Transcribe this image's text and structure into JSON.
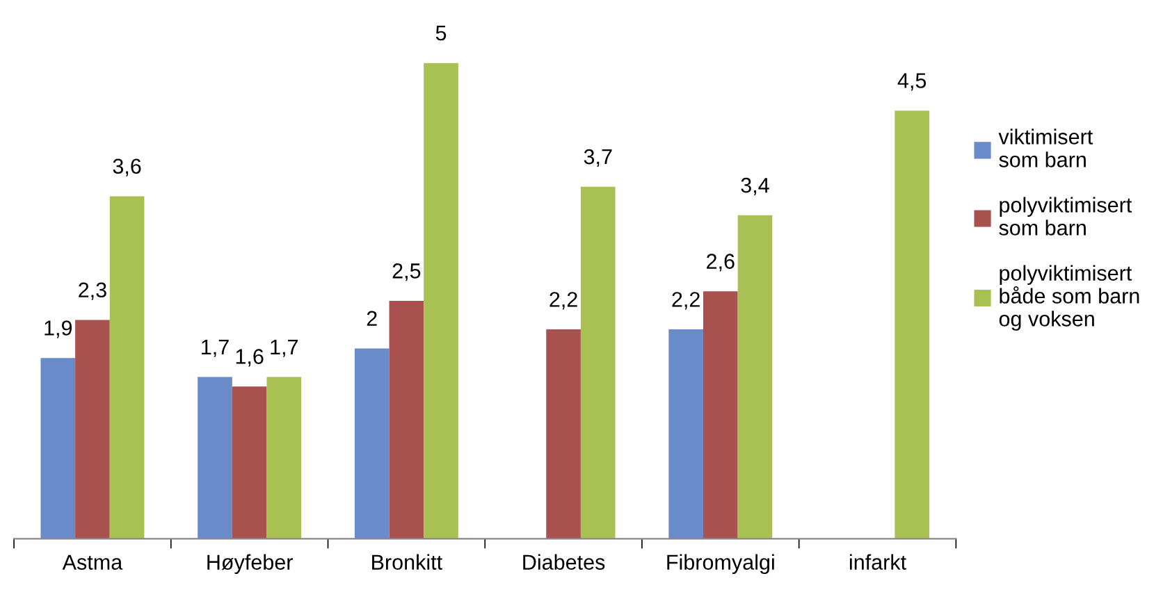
{
  "chart_data": {
    "type": "bar",
    "categories": [
      "Astma",
      "Høyfeber",
      "Bronkitt",
      "Diabetes",
      "Fibromyalgi",
      "infarkt"
    ],
    "series": [
      {
        "name": "viktimisert\nsom barn",
        "color": "#6a8bc9",
        "values": [
          1.9,
          1.7,
          2,
          null,
          2.2,
          null
        ],
        "value_labels": [
          "1,9",
          "1,7",
          "2",
          null,
          "2,2",
          null
        ]
      },
      {
        "name": "polyviktimisert\nsom barn",
        "color": "#a9514f",
        "values": [
          2.3,
          1.6,
          2.5,
          2.2,
          2.6,
          null
        ],
        "value_labels": [
          "2,3",
          "1,6",
          "2,5",
          "2,2",
          "2,6",
          null
        ]
      },
      {
        "name": "polyviktimisert\nbåde som barn\nog voksen",
        "color": "#a9c152",
        "values": [
          3.6,
          1.7,
          5,
          3.7,
          3.4,
          4.5
        ],
        "value_labels": [
          "3,6",
          "1,7",
          "5",
          "3,7",
          "3,4",
          "4,5"
        ]
      }
    ],
    "legend": "right",
    "grid": false
  }
}
